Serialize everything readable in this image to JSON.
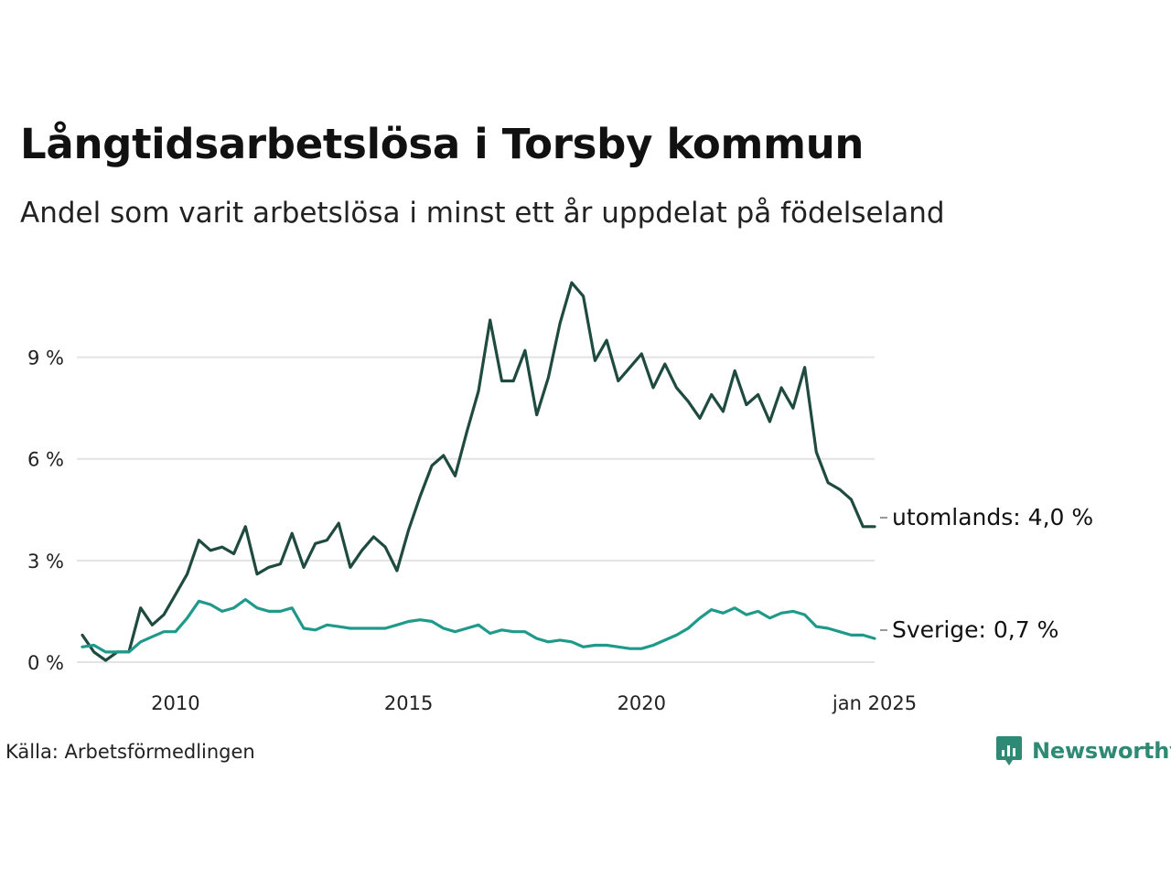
{
  "title": "Långtidsarbetslösa i Torsby kommun",
  "subtitle": "Andel som varit arbetslösa i minst ett år uppdelat på födelseland",
  "source": "Källa: Arbetsförmedlingen",
  "brand": {
    "name": "Newsworthy",
    "color": "#2e8a74"
  },
  "chart_data": {
    "type": "line",
    "title": "Långtidsarbetslösa i Torsby kommun",
    "subtitle": "Andel som varit arbetslösa i minst ett år uppdelat på födelseland",
    "xlabel": "",
    "ylabel": "",
    "x_range": [
      "2008-01",
      "2025-01"
    ],
    "ylim": [
      0,
      11.5
    ],
    "grid": true,
    "legend": "end-of-line labels (right)",
    "y_ticks": [
      {
        "value": 0,
        "label": "0 %"
      },
      {
        "value": 3,
        "label": "3 %"
      },
      {
        "value": 6,
        "label": "6 %"
      },
      {
        "value": 9,
        "label": "9 %"
      }
    ],
    "x_ticks": [
      {
        "date": "2010-01",
        "label": "2010"
      },
      {
        "date": "2015-01",
        "label": "2015"
      },
      {
        "date": "2020-01",
        "label": "2020"
      },
      {
        "date": "2025-01",
        "label": "jan 2025"
      }
    ],
    "series": [
      {
        "name": "utomlands",
        "end_label": "utomlands: 4,0 %",
        "color": "#1f4a40",
        "points": [
          [
            "2008-01",
            0.8
          ],
          [
            "2008-04",
            0.3
          ],
          [
            "2008-07",
            0.05
          ],
          [
            "2008-10",
            0.3
          ],
          [
            "2009-01",
            0.3
          ],
          [
            "2009-04",
            1.6
          ],
          [
            "2009-07",
            1.1
          ],
          [
            "2009-10",
            1.4
          ],
          [
            "2010-01",
            2.0
          ],
          [
            "2010-04",
            2.6
          ],
          [
            "2010-07",
            3.6
          ],
          [
            "2010-10",
            3.3
          ],
          [
            "2011-01",
            3.4
          ],
          [
            "2011-04",
            3.2
          ],
          [
            "2011-07",
            4.0
          ],
          [
            "2011-10",
            2.6
          ],
          [
            "2012-01",
            2.8
          ],
          [
            "2012-04",
            2.9
          ],
          [
            "2012-07",
            3.8
          ],
          [
            "2012-10",
            2.8
          ],
          [
            "2013-01",
            3.5
          ],
          [
            "2013-04",
            3.6
          ],
          [
            "2013-07",
            4.1
          ],
          [
            "2013-10",
            2.8
          ],
          [
            "2014-01",
            3.3
          ],
          [
            "2014-04",
            3.7
          ],
          [
            "2014-07",
            3.4
          ],
          [
            "2014-10",
            2.7
          ],
          [
            "2015-01",
            3.9
          ],
          [
            "2015-04",
            4.9
          ],
          [
            "2015-07",
            5.8
          ],
          [
            "2015-10",
            6.1
          ],
          [
            "2016-01",
            5.5
          ],
          [
            "2016-04",
            6.8
          ],
          [
            "2016-07",
            8.0
          ],
          [
            "2016-10",
            10.1
          ],
          [
            "2017-01",
            8.3
          ],
          [
            "2017-04",
            8.3
          ],
          [
            "2017-07",
            9.2
          ],
          [
            "2017-10",
            7.3
          ],
          [
            "2018-01",
            8.4
          ],
          [
            "2018-04",
            10.0
          ],
          [
            "2018-07",
            11.2
          ],
          [
            "2018-10",
            10.8
          ],
          [
            "2019-01",
            8.9
          ],
          [
            "2019-04",
            9.5
          ],
          [
            "2019-07",
            8.3
          ],
          [
            "2019-10",
            8.7
          ],
          [
            "2020-01",
            9.1
          ],
          [
            "2020-04",
            8.1
          ],
          [
            "2020-07",
            8.8
          ],
          [
            "2020-10",
            8.1
          ],
          [
            "2021-01",
            7.7
          ],
          [
            "2021-04",
            7.2
          ],
          [
            "2021-07",
            7.9
          ],
          [
            "2021-10",
            7.4
          ],
          [
            "2022-01",
            8.6
          ],
          [
            "2022-04",
            7.6
          ],
          [
            "2022-07",
            7.9
          ],
          [
            "2022-10",
            7.1
          ],
          [
            "2023-01",
            8.1
          ],
          [
            "2023-04",
            7.5
          ],
          [
            "2023-07",
            8.7
          ],
          [
            "2023-10",
            6.2
          ],
          [
            "2024-01",
            5.3
          ],
          [
            "2024-04",
            5.1
          ],
          [
            "2024-07",
            4.8
          ],
          [
            "2024-10",
            4.0
          ],
          [
            "2025-01",
            4.0
          ]
        ]
      },
      {
        "name": "Sverige",
        "end_label": "Sverige: 0,7 %",
        "color": "#1f9a8a",
        "points": [
          [
            "2008-01",
            0.45
          ],
          [
            "2008-04",
            0.5
          ],
          [
            "2008-07",
            0.3
          ],
          [
            "2008-10",
            0.3
          ],
          [
            "2009-01",
            0.3
          ],
          [
            "2009-04",
            0.6
          ],
          [
            "2009-07",
            0.75
          ],
          [
            "2009-10",
            0.9
          ],
          [
            "2010-01",
            0.9
          ],
          [
            "2010-04",
            1.3
          ],
          [
            "2010-07",
            1.8
          ],
          [
            "2010-10",
            1.7
          ],
          [
            "2011-01",
            1.5
          ],
          [
            "2011-04",
            1.6
          ],
          [
            "2011-07",
            1.85
          ],
          [
            "2011-10",
            1.6
          ],
          [
            "2012-01",
            1.5
          ],
          [
            "2012-04",
            1.5
          ],
          [
            "2012-07",
            1.6
          ],
          [
            "2012-10",
            1.0
          ],
          [
            "2013-01",
            0.95
          ],
          [
            "2013-04",
            1.1
          ],
          [
            "2013-07",
            1.05
          ],
          [
            "2013-10",
            1.0
          ],
          [
            "2014-01",
            1.0
          ],
          [
            "2014-04",
            1.0
          ],
          [
            "2014-07",
            1.0
          ],
          [
            "2014-10",
            1.1
          ],
          [
            "2015-01",
            1.2
          ],
          [
            "2015-04",
            1.25
          ],
          [
            "2015-07",
            1.2
          ],
          [
            "2015-10",
            1.0
          ],
          [
            "2016-01",
            0.9
          ],
          [
            "2016-04",
            1.0
          ],
          [
            "2016-07",
            1.1
          ],
          [
            "2016-10",
            0.85
          ],
          [
            "2017-01",
            0.95
          ],
          [
            "2017-04",
            0.9
          ],
          [
            "2017-07",
            0.9
          ],
          [
            "2017-10",
            0.7
          ],
          [
            "2018-01",
            0.6
          ],
          [
            "2018-04",
            0.65
          ],
          [
            "2018-07",
            0.6
          ],
          [
            "2018-10",
            0.45
          ],
          [
            "2019-01",
            0.5
          ],
          [
            "2019-04",
            0.5
          ],
          [
            "2019-07",
            0.45
          ],
          [
            "2019-10",
            0.4
          ],
          [
            "2020-01",
            0.4
          ],
          [
            "2020-04",
            0.5
          ],
          [
            "2020-07",
            0.65
          ],
          [
            "2020-10",
            0.8
          ],
          [
            "2021-01",
            1.0
          ],
          [
            "2021-04",
            1.3
          ],
          [
            "2021-07",
            1.55
          ],
          [
            "2021-10",
            1.45
          ],
          [
            "2022-01",
            1.6
          ],
          [
            "2022-04",
            1.4
          ],
          [
            "2022-07",
            1.5
          ],
          [
            "2022-10",
            1.3
          ],
          [
            "2023-01",
            1.45
          ],
          [
            "2023-04",
            1.5
          ],
          [
            "2023-07",
            1.4
          ],
          [
            "2023-10",
            1.05
          ],
          [
            "2024-01",
            1.0
          ],
          [
            "2024-04",
            0.9
          ],
          [
            "2024-07",
            0.8
          ],
          [
            "2024-10",
            0.8
          ],
          [
            "2025-01",
            0.7
          ]
        ]
      }
    ]
  }
}
